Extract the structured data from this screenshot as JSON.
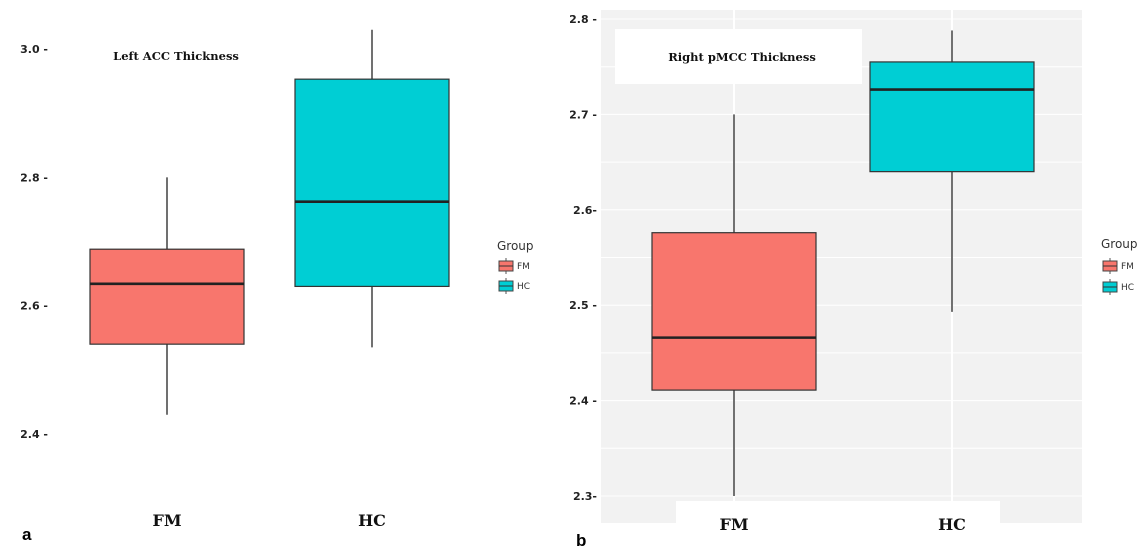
{
  "chart_data": [
    {
      "type": "box",
      "panel_label": "a",
      "title": "Left ACC Thickness",
      "categories": [
        "FM",
        "HC"
      ],
      "yticks": [
        "2.4 -",
        "2.6 -",
        "2.8 -",
        "3.0 -"
      ],
      "ylim": [
        2.35,
        3.05
      ],
      "legend": {
        "title": "Group",
        "entries": [
          "FM",
          "HC"
        ],
        "position": "right"
      },
      "background": "white",
      "grid": false,
      "series": [
        {
          "group": "FM",
          "color": "#F8766D",
          "whisker_low": 2.43,
          "q1": 2.54,
          "median": 2.634,
          "q3": 2.688,
          "whisker_high": 2.8
        },
        {
          "group": "HC",
          "color": "#00CED4",
          "whisker_low": 2.535,
          "q1": 2.63,
          "median": 2.762,
          "q3": 2.953,
          "whisker_high": 3.03
        }
      ]
    },
    {
      "type": "box",
      "panel_label": "b",
      "title": "Right pMCC Thickness",
      "categories": [
        "FM",
        "HC"
      ],
      "yticks": [
        "2.3-",
        "2.4 -",
        "2.5 -",
        "2.6-",
        "2.7 -",
        "2.8 -"
      ],
      "ylim": [
        2.29,
        2.81
      ],
      "legend": {
        "title": "Group",
        "entries": [
          "FM",
          "HC"
        ],
        "position": "right"
      },
      "background": "grey",
      "grid": true,
      "series": [
        {
          "group": "FM",
          "color": "#F8766D",
          "whisker_low": 2.3,
          "q1": 2.411,
          "median": 2.466,
          "q3": 2.576,
          "whisker_high": 2.7
        },
        {
          "group": "HC",
          "color": "#00CED4",
          "whisker_low": 2.493,
          "q1": 2.64,
          "median": 2.726,
          "q3": 2.755,
          "whisker_high": 2.788
        }
      ]
    }
  ]
}
